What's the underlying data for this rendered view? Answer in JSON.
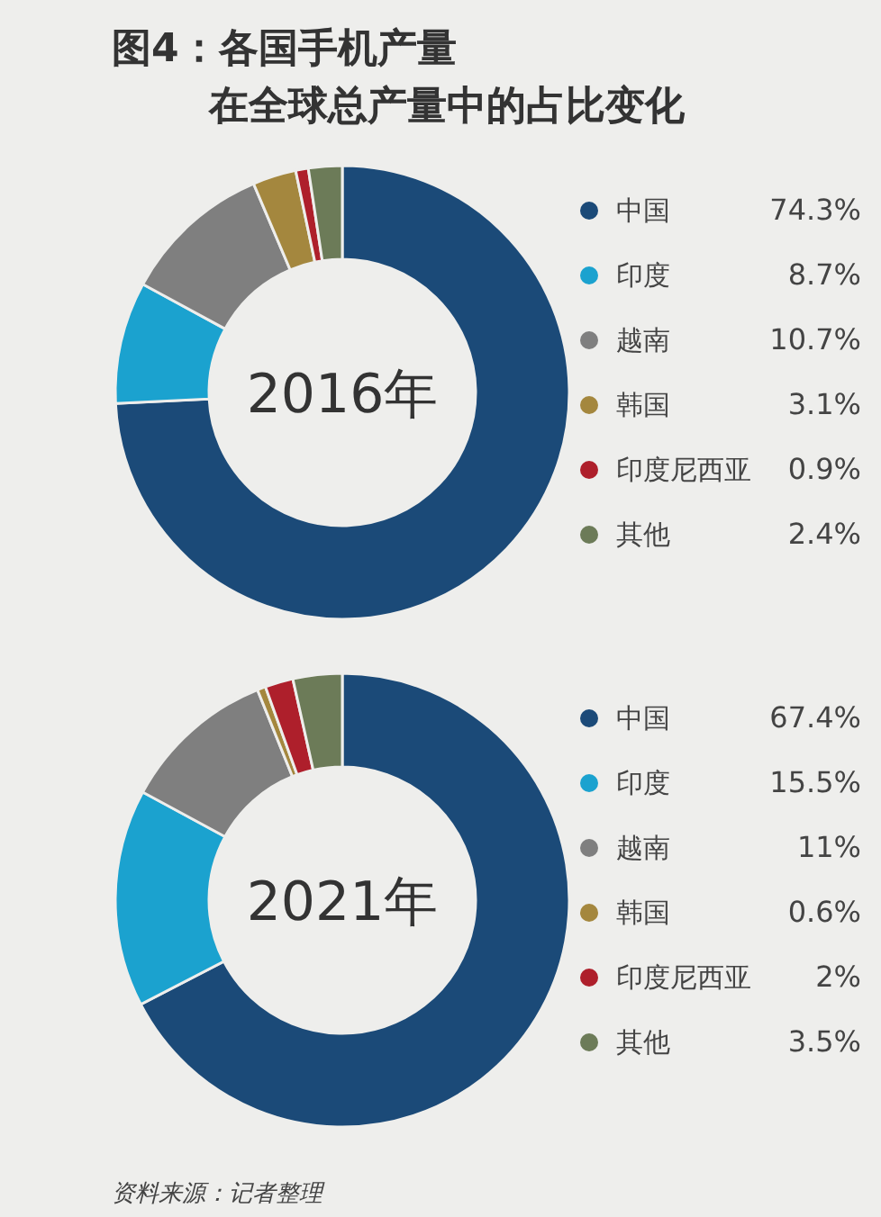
{
  "chart_data": [
    {
      "type": "donut",
      "title": "图4：各国手机产量",
      "subtitle": "在全球总产量中的占比变化",
      "annotations": [
        "2016年"
      ],
      "legend": "right",
      "categories": [
        "中国",
        "印度",
        "越南",
        "韩国",
        "印度尼西亚",
        "其他"
      ],
      "values": [
        74.3,
        8.7,
        10.7,
        3.1,
        0.9,
        2.4
      ],
      "value_labels": [
        "74.3%",
        "8.7%",
        "10.7%",
        "3.1%",
        "0.9%",
        "2.4%"
      ],
      "colors": [
        "#1b4a78",
        "#1ba2cf",
        "#7f7f7f",
        "#a4873e",
        "#ae1f2b",
        "#6c7b58"
      ]
    },
    {
      "type": "donut",
      "annotations": [
        "2021年",
        "资料来源：记者整理"
      ],
      "legend": "right",
      "categories": [
        "中国",
        "印度",
        "越南",
        "韩国",
        "印度尼西亚",
        "其他"
      ],
      "values": [
        67.4,
        15.5,
        11,
        0.6,
        2,
        3.5
      ],
      "value_labels": [
        "67.4%",
        "15.5%",
        "11%",
        "0.6%",
        "2%",
        "3.5%"
      ],
      "colors": [
        "#1b4a78",
        "#1ba2cf",
        "#7f7f7f",
        "#a4873e",
        "#ae1f2b",
        "#6c7b58"
      ]
    }
  ]
}
